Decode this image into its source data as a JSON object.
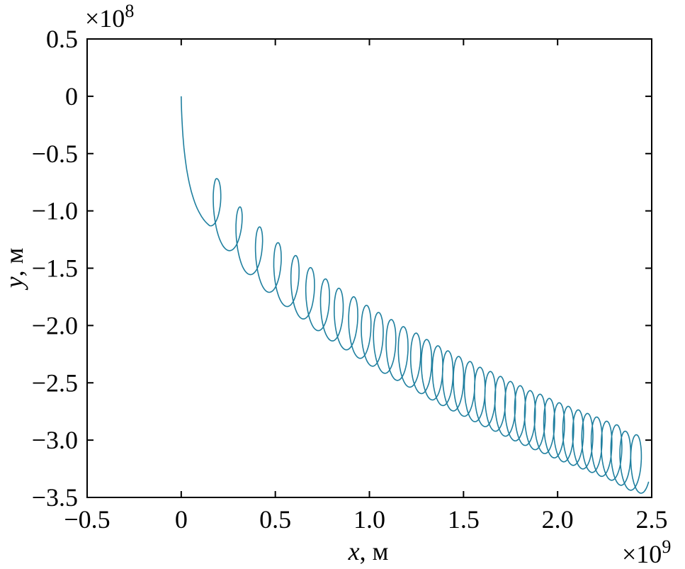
{
  "chart_data": {
    "type": "line",
    "title": "",
    "xlabel": {
      "var": "x",
      "unit": ", м"
    },
    "ylabel": {
      "var": "y",
      "unit": ", м"
    },
    "x_multiplier": {
      "base": "×10",
      "exp": "9"
    },
    "y_multiplier": {
      "base": "×10",
      "exp": "8"
    },
    "xlim": [
      -0.5,
      2.5
    ],
    "ylim": [
      -3.5,
      0.5
    ],
    "xticks": [
      -0.5,
      0,
      0.5,
      1.0,
      1.5,
      2.0,
      2.5
    ],
    "xtick_labels": [
      "−0.5",
      "0",
      "0.5",
      "1.0",
      "1.5",
      "2.0",
      "2.5"
    ],
    "yticks": [
      0.5,
      0,
      -0.5,
      -1.0,
      -1.5,
      -2.0,
      -2.5,
      -3.0,
      -3.5
    ],
    "ytick_labels": [
      "0.5",
      "0",
      "−0.5",
      "−1.0",
      "−1.5",
      "−2.0",
      "−2.5",
      "−3.0",
      "−3.5"
    ],
    "grid": false,
    "line_color": "#1f7f9f",
    "series": [
      {
        "start": [
          0,
          0
        ],
        "first_trough": [
          0.151,
          -1.129
        ],
        "loop_radius_x": 0.041,
        "loop_radius_y": 0.25,
        "loop_tops": [
          [
            0.185,
            -0.72
          ],
          [
            0.309,
            -0.968
          ],
          [
            0.414,
            -1.141
          ],
          [
            0.512,
            -1.278
          ],
          [
            0.606,
            -1.39
          ],
          [
            0.685,
            -1.495
          ],
          [
            0.765,
            -1.594
          ],
          [
            0.836,
            -1.675
          ],
          [
            0.915,
            -1.749
          ],
          [
            0.983,
            -1.824
          ],
          [
            1.047,
            -1.886
          ],
          [
            1.115,
            -1.948
          ],
          [
            1.179,
            -2.01
          ],
          [
            1.247,
            -2.066
          ],
          [
            1.303,
            -2.122
          ],
          [
            1.363,
            -2.177
          ],
          [
            1.416,
            -2.221
          ],
          [
            1.473,
            -2.27
          ],
          [
            1.533,
            -2.314
          ],
          [
            1.586,
            -2.364
          ],
          [
            1.642,
            -2.401
          ],
          [
            1.695,
            -2.444
          ],
          [
            1.748,
            -2.488
          ],
          [
            1.8,
            -2.525
          ],
          [
            1.853,
            -2.568
          ],
          [
            1.906,
            -2.599
          ],
          [
            1.955,
            -2.636
          ],
          [
            2.008,
            -2.674
          ],
          [
            2.056,
            -2.705
          ],
          [
            2.109,
            -2.736
          ],
          [
            2.158,
            -2.767
          ],
          [
            2.207,
            -2.798
          ],
          [
            2.26,
            -2.835
          ],
          [
            2.313,
            -2.866
          ],
          [
            2.358,
            -2.922
          ],
          [
            2.418,
            -2.953
          ]
        ]
      }
    ]
  }
}
